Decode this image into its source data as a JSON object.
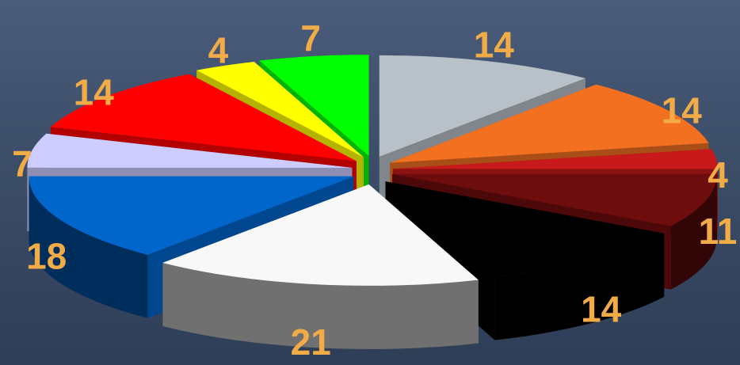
{
  "chart_data": {
    "type": "pie",
    "style": "3d-exploded",
    "legend": "none",
    "slices": [
      {
        "value": 14,
        "color": "#b8c0c8"
      },
      {
        "value": 14,
        "color": "#f37021"
      },
      {
        "value": 4,
        "color": "#c81a1a"
      },
      {
        "value": 11,
        "color": "#6e0d0d"
      },
      {
        "value": 14,
        "color": "#000000"
      },
      {
        "value": 21,
        "color": "#f8f8f8"
      },
      {
        "value": 18,
        "color": "#0066cc"
      },
      {
        "value": 7,
        "color": "#ccccff"
      },
      {
        "value": 14,
        "color": "#ff0000"
      },
      {
        "value": 4,
        "color": "#ffff00"
      },
      {
        "value": 7,
        "color": "#00ff00"
      }
    ]
  }
}
